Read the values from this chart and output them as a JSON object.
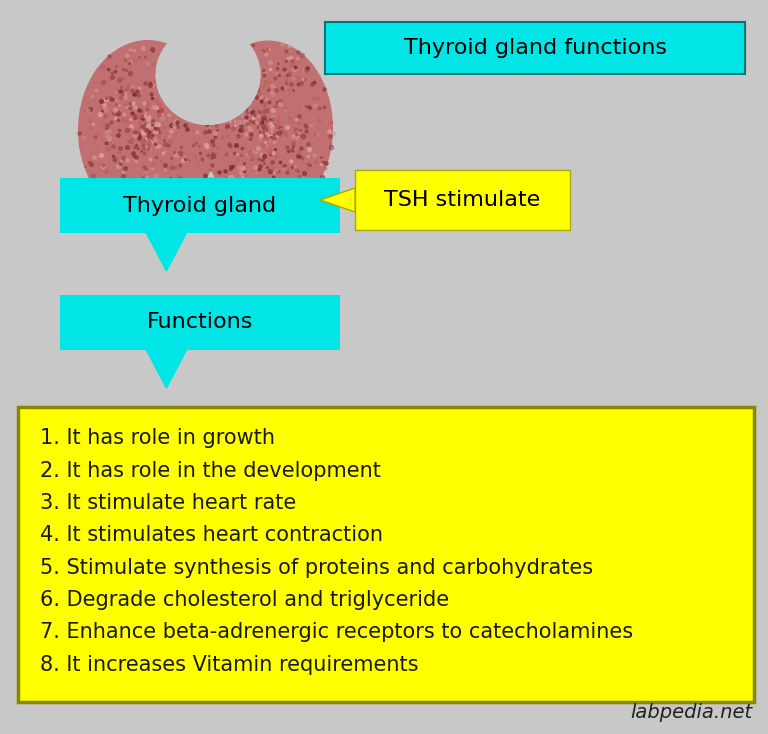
{
  "background_color": "#c8c8c8",
  "title_box_color": "#00e5e5",
  "title_text": "Thyroid gland functions",
  "thyroid_gland_box_color": "#00e5e5",
  "thyroid_gland_text": "Thyroid gland",
  "tsh_box_color": "#ffff00",
  "tsh_text": "TSH stimulate",
  "functions_box_color": "#00e5e5",
  "functions_text": "Functions",
  "yellow_box_color": "#ffff00",
  "yellow_box_border": "#888800",
  "list_items": [
    "1. It has role in growth",
    "2. It has role in the development",
    "3. It stimulate heart rate",
    "4. It stimulates heart contraction",
    "5. Stimulate synthesis of proteins and carbohydrates",
    "6. Degrade cholesterol and triglyceride",
    "7. Enhance beta-adrenergic receptors to catecholamines",
    "8. It increases Vitamin requirements"
  ],
  "text_color": "#1a1a1a",
  "watermark": "labpedia.net",
  "font_size_title": 16,
  "font_size_list": 15,
  "font_size_box": 16,
  "lobe_base_color": "#c07070",
  "lobe_edge_color": "#884444",
  "dot_colors": [
    "#8b3a3a",
    "#d09090",
    "#a04444",
    "#e0a0a0",
    "#7a2a2a",
    "#c06060"
  ]
}
